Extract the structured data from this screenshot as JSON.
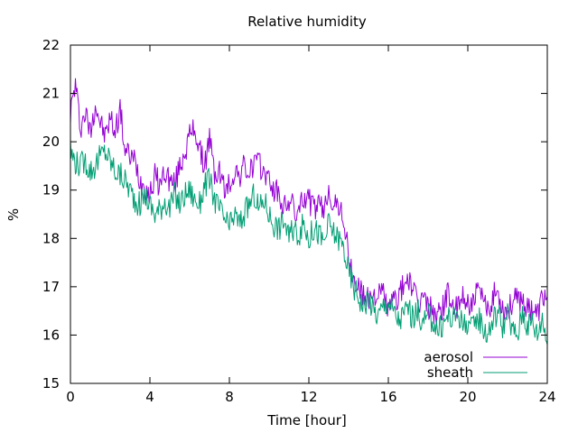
{
  "chart_data": {
    "type": "line",
    "title": "Relative humidity",
    "xlabel": "Time [hour]",
    "ylabel": "%",
    "xlim": [
      0,
      24
    ],
    "ylim": [
      15,
      22
    ],
    "xticks": [
      0,
      4,
      8,
      12,
      16,
      20,
      24
    ],
    "yticks": [
      15,
      16,
      17,
      18,
      19,
      20,
      21,
      22
    ],
    "grid": false,
    "legend_position": "bottom-right",
    "series": [
      {
        "name": "aerosol",
        "color": "#9400d3",
        "x": [
          0,
          0.25,
          0.5,
          0.75,
          1,
          1.25,
          1.5,
          1.75,
          2,
          2.25,
          2.5,
          2.75,
          3,
          3.25,
          3.5,
          3.75,
          4,
          4.25,
          4.5,
          4.75,
          5,
          5.25,
          5.5,
          5.75,
          6,
          6.25,
          6.5,
          6.75,
          7,
          7.25,
          7.5,
          7.75,
          8,
          8.25,
          8.5,
          8.75,
          9,
          9.25,
          9.5,
          9.75,
          10,
          10.25,
          10.5,
          10.75,
          11,
          11.25,
          11.5,
          11.75,
          12,
          12.25,
          12.5,
          12.75,
          13,
          13.25,
          13.5,
          13.75,
          14,
          14.25,
          14.5,
          14.75,
          15,
          15.25,
          15.5,
          15.75,
          16,
          16.25,
          16.5,
          16.75,
          17,
          17.25,
          17.5,
          17.75,
          18,
          18.25,
          18.5,
          18.75,
          19,
          19.25,
          19.5,
          19.75,
          20,
          20.25,
          20.5,
          20.75,
          21,
          21.25,
          21.5,
          21.75,
          22,
          22.25,
          22.5,
          22.75,
          23,
          23.25,
          23.5,
          23.75,
          24
        ],
        "values": [
          20.6,
          21.2,
          20.3,
          20.6,
          20.2,
          20.8,
          20.4,
          20.1,
          20.5,
          20.2,
          20.7,
          19.8,
          19.7,
          19.6,
          19.2,
          19.1,
          18.9,
          19.3,
          19.1,
          19.4,
          19.2,
          19.1,
          19.5,
          19.8,
          20.1,
          20.3,
          19.8,
          19.5,
          20.1,
          19.3,
          19.4,
          19.0,
          19.1,
          19.4,
          19.3,
          19.5,
          19.3,
          19.6,
          19.5,
          19.4,
          19.2,
          19.0,
          18.9,
          18.6,
          18.8,
          18.6,
          18.5,
          18.9,
          18.8,
          18.6,
          18.7,
          18.5,
          19.1,
          18.6,
          18.7,
          18.4,
          17.6,
          17.1,
          17.0,
          16.8,
          16.7,
          16.9,
          16.8,
          16.9,
          16.5,
          16.7,
          16.8,
          17.0,
          17.2,
          16.9,
          16.6,
          16.8,
          16.6,
          16.5,
          16.4,
          16.6,
          16.9,
          16.6,
          16.5,
          16.8,
          16.7,
          16.6,
          16.9,
          16.7,
          16.5,
          16.8,
          16.9,
          16.6,
          16.5,
          16.7,
          16.7,
          16.8,
          16.5,
          16.6,
          16.4,
          16.8,
          16.8
        ]
      },
      {
        "name": "sheath",
        "color": "#009e73",
        "x": [
          0,
          0.25,
          0.5,
          0.75,
          1,
          1.25,
          1.5,
          1.75,
          2,
          2.25,
          2.5,
          2.75,
          3,
          3.25,
          3.5,
          3.75,
          4,
          4.25,
          4.5,
          4.75,
          5,
          5.25,
          5.5,
          5.75,
          6,
          6.25,
          6.5,
          6.75,
          7,
          7.25,
          7.5,
          7.75,
          8,
          8.25,
          8.5,
          8.75,
          9,
          9.25,
          9.5,
          9.75,
          10,
          10.25,
          10.5,
          10.75,
          11,
          11.25,
          11.5,
          11.75,
          12,
          12.25,
          12.5,
          12.75,
          13,
          13.25,
          13.5,
          13.75,
          14,
          14.25,
          14.5,
          14.75,
          15,
          15.25,
          15.5,
          15.75,
          16,
          16.25,
          16.5,
          16.75,
          17,
          17.25,
          17.5,
          17.75,
          18,
          18.25,
          18.5,
          18.75,
          19,
          19.25,
          19.5,
          19.75,
          20,
          20.25,
          20.5,
          20.75,
          21,
          21.25,
          21.5,
          21.75,
          22,
          22.25,
          22.5,
          22.75,
          23,
          23.25,
          23.5,
          23.75,
          24
        ],
        "values": [
          19.8,
          19.6,
          19.5,
          19.6,
          19.4,
          19.5,
          19.7,
          19.8,
          19.6,
          19.4,
          19.3,
          19.2,
          19.0,
          18.8,
          18.7,
          18.9,
          18.7,
          18.5,
          18.6,
          18.8,
          18.6,
          18.9,
          18.7,
          18.9,
          19.0,
          18.8,
          18.7,
          19.1,
          19.2,
          18.8,
          18.6,
          18.4,
          18.2,
          18.5,
          18.3,
          18.5,
          18.7,
          18.9,
          18.6,
          18.8,
          18.5,
          18.3,
          18.2,
          18.4,
          18.0,
          18.2,
          18.1,
          18.3,
          18.0,
          18.2,
          18.1,
          17.9,
          18.3,
          18.1,
          18.0,
          17.8,
          17.3,
          17.0,
          16.8,
          16.6,
          16.8,
          16.5,
          16.4,
          16.6,
          16.7,
          16.5,
          16.3,
          16.4,
          16.6,
          16.3,
          16.5,
          16.2,
          16.4,
          16.3,
          16.1,
          16.2,
          16.4,
          16.3,
          16.5,
          16.2,
          16.3,
          16.1,
          16.4,
          16.2,
          16.0,
          16.3,
          16.5,
          16.2,
          16.4,
          16.1,
          16.0,
          16.5,
          16.2,
          16.3,
          16.0,
          16.4,
          15.8
        ]
      }
    ]
  }
}
